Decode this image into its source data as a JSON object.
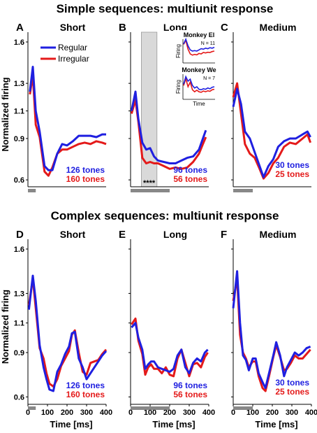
{
  "figure": {
    "section_titles": [
      "Simple sequences: multiunit response",
      "Complex sequences: multiunit response"
    ],
    "ylabel": "Normalized firing",
    "xlabel": "Time [ms]",
    "legend": [
      "Regular",
      "Irregular"
    ],
    "significance_marks": "****"
  },
  "colors": {
    "regular": "#1f1fe0",
    "irregular": "#e41a1a",
    "shade": "#d9d9d9",
    "stim_bar": "#888888"
  },
  "chart_data": [
    {
      "type": "line",
      "panel": "A",
      "title": "Short",
      "xlabel": "",
      "ylabel": "Normalized firing",
      "xlim": [
        0,
        400
      ],
      "ylim": [
        0.55,
        1.6
      ],
      "yticks": [
        0.6,
        0.9,
        1.1,
        1.3,
        1.6
      ],
      "xticks": [],
      "stimulus_bar": [
        0,
        40
      ],
      "counts": [
        "126 tones",
        "160 tones"
      ],
      "series": [
        {
          "name": "Regular",
          "x": [
            10,
            25,
            40,
            60,
            85,
            105,
            125,
            150,
            175,
            200,
            230,
            260,
            290,
            320,
            350,
            380,
            400
          ],
          "values": [
            1.24,
            1.42,
            1.1,
            0.95,
            0.7,
            0.67,
            0.67,
            0.79,
            0.86,
            0.85,
            0.88,
            0.92,
            0.92,
            0.92,
            0.91,
            0.93,
            0.93
          ]
        },
        {
          "name": "Irregular",
          "x": [
            10,
            25,
            40,
            60,
            85,
            105,
            125,
            150,
            175,
            200,
            230,
            260,
            290,
            320,
            350,
            380,
            400
          ],
          "values": [
            1.22,
            1.36,
            1.0,
            0.91,
            0.66,
            0.63,
            0.69,
            0.79,
            0.82,
            0.82,
            0.84,
            0.86,
            0.87,
            0.86,
            0.88,
            0.87,
            0.86
          ]
        }
      ]
    },
    {
      "type": "line",
      "panel": "B",
      "title": "Long",
      "xlabel": "",
      "ylabel": "",
      "xlim": [
        0,
        400
      ],
      "ylim": [
        0.55,
        1.6
      ],
      "xticks": [],
      "stimulus_bar": [
        0,
        200
      ],
      "shaded_region": [
        55,
        135
      ],
      "counts": [
        "96 tones",
        "56 tones"
      ],
      "series": [
        {
          "name": "Regular",
          "x": [
            5,
            25,
            40,
            60,
            80,
            100,
            120,
            140,
            170,
            200,
            230,
            260,
            290,
            320,
            350,
            370,
            385
          ],
          "values": [
            1.1,
            1.24,
            1.04,
            0.87,
            0.82,
            0.83,
            0.77,
            0.74,
            0.73,
            0.72,
            0.72,
            0.74,
            0.76,
            0.77,
            0.82,
            0.9,
            0.96
          ]
        },
        {
          "name": "Irregular",
          "x": [
            5,
            25,
            40,
            60,
            80,
            100,
            120,
            140,
            170,
            200,
            230,
            260,
            290,
            320,
            350,
            370,
            385
          ],
          "values": [
            1.08,
            1.18,
            1.02,
            0.76,
            0.72,
            0.73,
            0.72,
            0.72,
            0.7,
            0.68,
            0.69,
            0.68,
            0.69,
            0.73,
            0.79,
            0.86,
            0.91
          ]
        }
      ]
    },
    {
      "type": "line",
      "panel": "C",
      "title": "Medium",
      "xlabel": "",
      "ylabel": "",
      "xlim": [
        0,
        400
      ],
      "ylim": [
        0.55,
        1.6
      ],
      "xticks": [],
      "stimulus_bar": [
        0,
        100
      ],
      "counts": [
        "30 tones",
        "25 tones"
      ],
      "series": [
        {
          "name": "Regular",
          "x": [
            0,
            20,
            40,
            60,
            85,
            110,
            135,
            155,
            180,
            205,
            230,
            260,
            290,
            320,
            355,
            380,
            395
          ],
          "values": [
            1.13,
            1.26,
            1.15,
            0.95,
            0.9,
            0.8,
            0.7,
            0.62,
            0.7,
            0.75,
            0.84,
            0.88,
            0.9,
            0.9,
            0.93,
            0.95,
            0.91
          ]
        },
        {
          "name": "Irregular",
          "x": [
            0,
            20,
            40,
            60,
            85,
            110,
            135,
            155,
            180,
            205,
            230,
            260,
            290,
            320,
            355,
            380,
            395
          ],
          "values": [
            1.2,
            1.3,
            1.08,
            0.86,
            0.79,
            0.76,
            0.68,
            0.61,
            0.65,
            0.72,
            0.76,
            0.84,
            0.87,
            0.86,
            0.9,
            0.93,
            0.87
          ]
        }
      ]
    },
    {
      "type": "line",
      "panel": "D",
      "title": "Short",
      "xlabel": "Time [ms]",
      "ylabel": "Normalized firing",
      "xlim": [
        0,
        400
      ],
      "ylim": [
        0.55,
        1.6
      ],
      "yticks": [
        0.6,
        0.9,
        1.1,
        1.3,
        1.6
      ],
      "xticks": [
        0,
        100,
        200,
        300,
        400
      ],
      "stimulus_bar": [
        0,
        40
      ],
      "counts": [
        "126 tones",
        "160 tones"
      ],
      "series": [
        {
          "name": "Regular",
          "x": [
            5,
            25,
            40,
            60,
            80,
            95,
            110,
            130,
            150,
            170,
            190,
            210,
            225,
            240,
            260,
            280,
            300,
            320,
            340,
            360,
            380,
            400
          ],
          "values": [
            1.19,
            1.42,
            1.25,
            0.95,
            0.8,
            0.72,
            0.65,
            0.64,
            0.77,
            0.82,
            0.89,
            0.94,
            1.03,
            1.04,
            0.86,
            0.8,
            0.72,
            0.76,
            0.8,
            0.84,
            0.88,
            0.91
          ]
        },
        {
          "name": "Irregular",
          "x": [
            5,
            25,
            40,
            60,
            80,
            95,
            110,
            130,
            150,
            170,
            190,
            210,
            225,
            240,
            260,
            280,
            300,
            320,
            340,
            360,
            380,
            400
          ],
          "values": [
            1.22,
            1.4,
            1.2,
            0.93,
            0.86,
            0.76,
            0.69,
            0.67,
            0.72,
            0.81,
            0.86,
            0.91,
            1.02,
            1.05,
            0.9,
            0.77,
            0.75,
            0.83,
            0.84,
            0.85,
            0.89,
            0.92
          ]
        }
      ]
    },
    {
      "type": "line",
      "panel": "E",
      "title": "Long",
      "xlabel": "Time [ms]",
      "ylabel": "",
      "xlim": [
        0,
        400
      ],
      "ylim": [
        0.55,
        1.6
      ],
      "xticks": [
        0,
        100,
        200,
        300,
        400
      ],
      "stimulus_bar": [
        0,
        200
      ],
      "counts": [
        "96 tones",
        "56 tones"
      ],
      "series": [
        {
          "name": "Regular",
          "x": [
            5,
            25,
            40,
            60,
            75,
            90,
            105,
            120,
            140,
            160,
            180,
            200,
            220,
            240,
            260,
            280,
            300,
            320,
            340,
            360,
            380,
            395
          ],
          "values": [
            1.07,
            1.1,
            1.0,
            0.92,
            0.79,
            0.82,
            0.84,
            0.84,
            0.8,
            0.79,
            0.78,
            0.77,
            0.79,
            0.88,
            0.92,
            0.8,
            0.76,
            0.83,
            0.86,
            0.84,
            0.9,
            0.92
          ]
        },
        {
          "name": "Irregular",
          "x": [
            5,
            25,
            40,
            60,
            75,
            90,
            105,
            120,
            140,
            160,
            180,
            200,
            220,
            240,
            260,
            280,
            300,
            320,
            340,
            360,
            380,
            395
          ],
          "values": [
            1.09,
            1.13,
            0.98,
            0.89,
            0.75,
            0.8,
            0.82,
            0.79,
            0.79,
            0.76,
            0.8,
            0.75,
            0.74,
            0.86,
            0.92,
            0.83,
            0.74,
            0.82,
            0.83,
            0.8,
            0.87,
            0.9
          ]
        }
      ]
    },
    {
      "type": "line",
      "panel": "F",
      "title": "Medium",
      "xlabel": "Time [ms]",
      "ylabel": "",
      "xlim": [
        0,
        400
      ],
      "ylim": [
        0.55,
        1.6
      ],
      "xticks": [
        0,
        100,
        200,
        300,
        400
      ],
      "stimulus_bar": [
        0,
        100
      ],
      "counts": [
        "30 tones",
        "25 tones"
      ],
      "series": [
        {
          "name": "Regular",
          "x": [
            0,
            20,
            35,
            50,
            65,
            80,
            100,
            115,
            130,
            150,
            165,
            185,
            205,
            220,
            240,
            260,
            275,
            295,
            315,
            335,
            355,
            375,
            395
          ],
          "values": [
            1.2,
            1.45,
            1.1,
            0.88,
            0.85,
            0.78,
            0.86,
            0.86,
            0.76,
            0.7,
            0.66,
            0.77,
            0.88,
            0.97,
            0.88,
            0.74,
            0.8,
            0.85,
            0.9,
            0.88,
            0.9,
            0.93,
            0.94
          ]
        },
        {
          "name": "Irregular",
          "x": [
            0,
            20,
            35,
            50,
            65,
            80,
            100,
            115,
            130,
            150,
            165,
            185,
            205,
            220,
            240,
            260,
            275,
            295,
            315,
            335,
            355,
            375,
            395
          ],
          "values": [
            1.25,
            1.4,
            1.02,
            0.9,
            0.86,
            0.8,
            0.84,
            0.84,
            0.74,
            0.66,
            0.64,
            0.75,
            0.87,
            0.95,
            0.87,
            0.78,
            0.79,
            0.83,
            0.88,
            0.86,
            0.86,
            0.89,
            0.92
          ]
        }
      ]
    }
  ],
  "insets": [
    {
      "title": "Monkey El",
      "note": "N = 11",
      "ylabel": "Firing",
      "xlabel": "",
      "series": [
        {
          "name": "Regular",
          "values": [
            0.8,
            1.0,
            0.72,
            0.55,
            0.5,
            0.52,
            0.5,
            0.55,
            0.6,
            0.58,
            0.62,
            0.6,
            0.64,
            0.62,
            0.66
          ]
        },
        {
          "name": "Irregular",
          "values": [
            0.78,
            0.95,
            0.58,
            0.38,
            0.33,
            0.36,
            0.34,
            0.4,
            0.38,
            0.44,
            0.42,
            0.45,
            0.44,
            0.48,
            0.5
          ]
        }
      ]
    },
    {
      "title": "Monkey We",
      "note": "N = 7",
      "ylabel": "Firing",
      "xlabel": "Time",
      "series": [
        {
          "name": "Regular",
          "values": [
            0.6,
            0.9,
            0.72,
            0.8,
            0.55,
            0.45,
            0.5,
            0.4,
            0.38,
            0.42,
            0.4,
            0.45,
            0.42,
            0.48,
            0.5
          ]
        },
        {
          "name": "Irregular",
          "values": [
            0.55,
            0.82,
            0.5,
            0.68,
            0.38,
            0.3,
            0.36,
            0.3,
            0.28,
            0.33,
            0.3,
            0.34,
            0.32,
            0.38,
            0.4
          ]
        }
      ]
    }
  ]
}
